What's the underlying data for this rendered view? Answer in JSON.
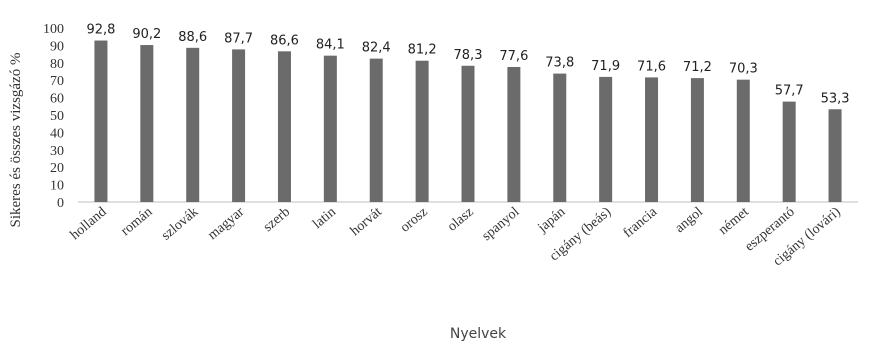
{
  "chart_data": {
    "type": "bar",
    "title": "",
    "xlabel": "Nyelvek",
    "ylabel": "Sikeres és összes vizsgázó %",
    "ylim": [
      0,
      100
    ],
    "yticks": [
      0,
      10,
      20,
      30,
      40,
      50,
      60,
      70,
      80,
      90,
      100
    ],
    "grid": false,
    "legend": "none",
    "bar_color": "#6b6b6b",
    "categories": [
      "holland",
      "román",
      "szlovák",
      "magyar",
      "szerb",
      "latin",
      "horvát",
      "orosz",
      "olasz",
      "spanyol",
      "japán",
      "cigány (beás)",
      "francia",
      "angol",
      "német",
      "eszperantó",
      "cigány (lovári)"
    ],
    "values": [
      92.8,
      90.2,
      88.6,
      87.7,
      86.6,
      84.1,
      82.4,
      81.2,
      78.3,
      77.6,
      73.8,
      71.9,
      71.6,
      71.2,
      70.3,
      57.7,
      53.3
    ],
    "data_labels": [
      "92,8",
      "90,2",
      "88,6",
      "87,7",
      "86,6",
      "84,1",
      "82,4",
      "81,2",
      "78,3",
      "77,6",
      "73,8",
      "71,9",
      "71,6",
      "71,2",
      "70,3",
      "57,7",
      "53,3"
    ]
  }
}
